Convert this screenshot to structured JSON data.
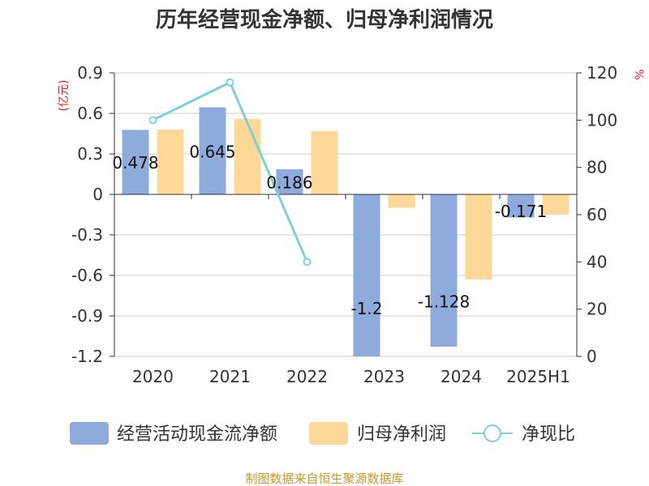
{
  "chart_data": {
    "type": "bar",
    "title": "历年经营现金净额、归母净利润情况",
    "categories": [
      "2020",
      "2021",
      "2022",
      "2023",
      "2024",
      "2025H1"
    ],
    "series": [
      {
        "name": "经营活动现金流净额",
        "type": "bar",
        "axis": "left",
        "color": "#8eabdb",
        "values": [
          0.478,
          0.645,
          0.186,
          -1.2,
          -1.128,
          -0.171
        ],
        "data_labels": [
          "0.478",
          "0.645",
          "0.186",
          "-1.2",
          "-1.128",
          "-0.171"
        ]
      },
      {
        "name": "归母净利润",
        "type": "bar",
        "axis": "left",
        "color": "#fdd898",
        "values": [
          0.48,
          0.56,
          0.47,
          -0.1,
          -0.63,
          -0.15
        ]
      },
      {
        "name": "净现比",
        "type": "line",
        "axis": "right",
        "color": "#7fd0d6",
        "values": [
          100,
          116,
          40,
          null,
          null,
          null
        ]
      }
    ],
    "y_left": {
      "unit": "(亿元)",
      "ylim": [
        -1.2,
        0.9
      ],
      "ticks": [
        "0.9",
        "0.6",
        "0.3",
        "0",
        "-0.3",
        "-0.6",
        "-0.9",
        "-1.2"
      ]
    },
    "y_right": {
      "unit": "%",
      "ylim": [
        0,
        120
      ],
      "ticks": [
        "120",
        "100",
        "80",
        "60",
        "40",
        "20",
        "0"
      ]
    },
    "grid": true,
    "legend_position": "bottom"
  },
  "source": "制图数据来自恒生聚源数据库"
}
